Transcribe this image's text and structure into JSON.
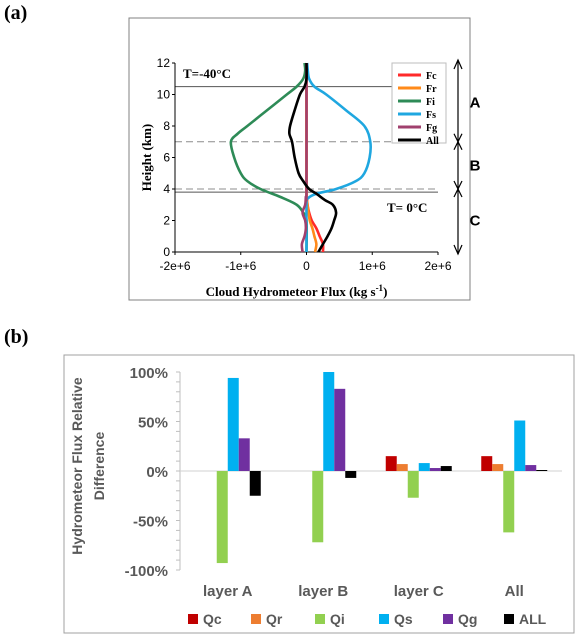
{
  "panel_labels": {
    "a": "(a)",
    "b": "(b)"
  },
  "colors": {
    "Fc": "#ff2a2a",
    "Fr": "#ff8a1a",
    "Fi": "#2e8b57",
    "Fs": "#1fa7e0",
    "Fg": "#a0406e",
    "All": "#000000",
    "Qc": "#c00000",
    "Qr": "#ed7d31",
    "Qi": "#92d050",
    "Qs": "#00b0f0",
    "Qg": "#7030a0",
    "ALL": "#000000"
  },
  "chart_data": [
    {
      "type": "line",
      "xlabel": "Cloud Hydrometeor Flux (kg s",
      "xlabel_sup": "-1",
      "xlabel_end": ")",
      "ylabel": "Height (km)",
      "xlim": [
        -2000000,
        2000000
      ],
      "ylim": [
        0,
        12
      ],
      "x_ticks": [
        -2000000,
        -1000000,
        0,
        1000000,
        2000000
      ],
      "x_tick_labels": [
        "-2e+6",
        "-1e+6",
        "0",
        "1e+6",
        "2e+6"
      ],
      "y_ticks": [
        0,
        2,
        4,
        6,
        8,
        10,
        12
      ],
      "y_tick_labels": [
        "0",
        "2",
        "4",
        "6",
        "8",
        "10",
        "12"
      ],
      "annotations": {
        "top_temp": "T=-40°C",
        "bottom_temp": "T=  0°C"
      },
      "reference_lines": [
        {
          "y": 10.5,
          "style": "solid"
        },
        {
          "y": 7.0,
          "style": "dashed"
        },
        {
          "y": 4.0,
          "style": "dashed"
        },
        {
          "y": 3.8,
          "style": "solid"
        }
      ],
      "layers": [
        {
          "name": "A",
          "from": 7.0,
          "to": 12.0
        },
        {
          "name": "B",
          "from": 4.0,
          "to": 7.0
        },
        {
          "name": "C",
          "from": 0.0,
          "to": 4.0
        }
      ],
      "legend_position": "top-right",
      "series": [
        {
          "name": "Fc",
          "points": [
            [
              250000,
              0
            ],
            [
              250000,
              0.5
            ],
            [
              200000,
              1
            ],
            [
              150000,
              1.5
            ],
            [
              80000,
              2
            ],
            [
              40000,
              2.5
            ],
            [
              15000,
              3
            ],
            [
              5000,
              3.5
            ],
            [
              0,
              4
            ],
            [
              0,
              12
            ]
          ]
        },
        {
          "name": "Fr",
          "points": [
            [
              130000,
              0
            ],
            [
              150000,
              0.5
            ],
            [
              120000,
              1
            ],
            [
              90000,
              1.5
            ],
            [
              50000,
              2
            ],
            [
              30000,
              2.5
            ],
            [
              15000,
              3
            ],
            [
              5000,
              3.5
            ],
            [
              0,
              4
            ],
            [
              0,
              12
            ]
          ]
        },
        {
          "name": "Fi",
          "points": [
            [
              0,
              0
            ],
            [
              0,
              2
            ],
            [
              -50000,
              2.5
            ],
            [
              -150000,
              3
            ],
            [
              -400000,
              3.5
            ],
            [
              -700000,
              4
            ],
            [
              -900000,
              4.5
            ],
            [
              -1000000,
              5
            ],
            [
              -1100000,
              6
            ],
            [
              -1150000,
              7
            ],
            [
              -1050000,
              7.5
            ],
            [
              -900000,
              8
            ],
            [
              -600000,
              9
            ],
            [
              -300000,
              10
            ],
            [
              -150000,
              10.5
            ],
            [
              -50000,
              11
            ],
            [
              -20000,
              11.5
            ],
            [
              -30000,
              12
            ]
          ]
        },
        {
          "name": "Fs",
          "points": [
            [
              0,
              0
            ],
            [
              0,
              3
            ],
            [
              20000,
              3.4
            ],
            [
              150000,
              3.7
            ],
            [
              450000,
              4
            ],
            [
              750000,
              4.5
            ],
            [
              880000,
              5
            ],
            [
              960000,
              6
            ],
            [
              970000,
              7
            ],
            [
              880000,
              8
            ],
            [
              600000,
              9
            ],
            [
              300000,
              10
            ],
            [
              120000,
              10.5
            ],
            [
              40000,
              11
            ],
            [
              20000,
              11.5
            ],
            [
              10000,
              12
            ]
          ]
        },
        {
          "name": "Fg",
          "points": [
            [
              -60000,
              0
            ],
            [
              -70000,
              0.5
            ],
            [
              -30000,
              1
            ],
            [
              -10000,
              1.5
            ],
            [
              -20000,
              2
            ],
            [
              -60000,
              2.5
            ],
            [
              -20000,
              3
            ],
            [
              -10000,
              3.5
            ],
            [
              0,
              4
            ],
            [
              0,
              12
            ]
          ]
        },
        {
          "name": "All",
          "points": [
            [
              180000,
              0
            ],
            [
              250000,
              0.5
            ],
            [
              320000,
              1
            ],
            [
              380000,
              1.5
            ],
            [
              420000,
              2
            ],
            [
              450000,
              2.5
            ],
            [
              400000,
              3
            ],
            [
              280000,
              3.3
            ],
            [
              150000,
              3.7
            ],
            [
              40000,
              4
            ],
            [
              -50000,
              4.5
            ],
            [
              -120000,
              5
            ],
            [
              -180000,
              6
            ],
            [
              -220000,
              7
            ],
            [
              -260000,
              7.5
            ],
            [
              -250000,
              8
            ],
            [
              -180000,
              9
            ],
            [
              -100000,
              10
            ],
            [
              -30000,
              10.5
            ],
            [
              0,
              11
            ],
            [
              0,
              12
            ]
          ]
        }
      ]
    },
    {
      "type": "bar",
      "ylabel": "Hydrometeor Flux  Relative Difference",
      "ylabel_line1": "Hydrometeor Flux  Relative",
      "ylabel_line2": "Difference",
      "categories": [
        "layer A",
        "layer B",
        "layer C",
        "All"
      ],
      "ylim": [
        -100,
        100
      ],
      "y_ticks": [
        -100,
        -50,
        0,
        50,
        100
      ],
      "y_tick_labels": [
        "-100%",
        "-50%",
        "0%",
        "50%",
        "100%"
      ],
      "legend_position": "bottom",
      "series": [
        {
          "name": "Qc",
          "values": [
            0,
            0,
            15,
            15
          ]
        },
        {
          "name": "Qr",
          "values": [
            0,
            0,
            7,
            7
          ]
        },
        {
          "name": "Qi",
          "values": [
            -93,
            -72,
            -27,
            -62
          ]
        },
        {
          "name": "Qs",
          "values": [
            94,
            100,
            8,
            51
          ]
        },
        {
          "name": "Qg",
          "values": [
            33,
            83,
            3,
            6
          ]
        },
        {
          "name": "ALL",
          "values": [
            -25,
            -7,
            5,
            1
          ]
        }
      ]
    }
  ]
}
